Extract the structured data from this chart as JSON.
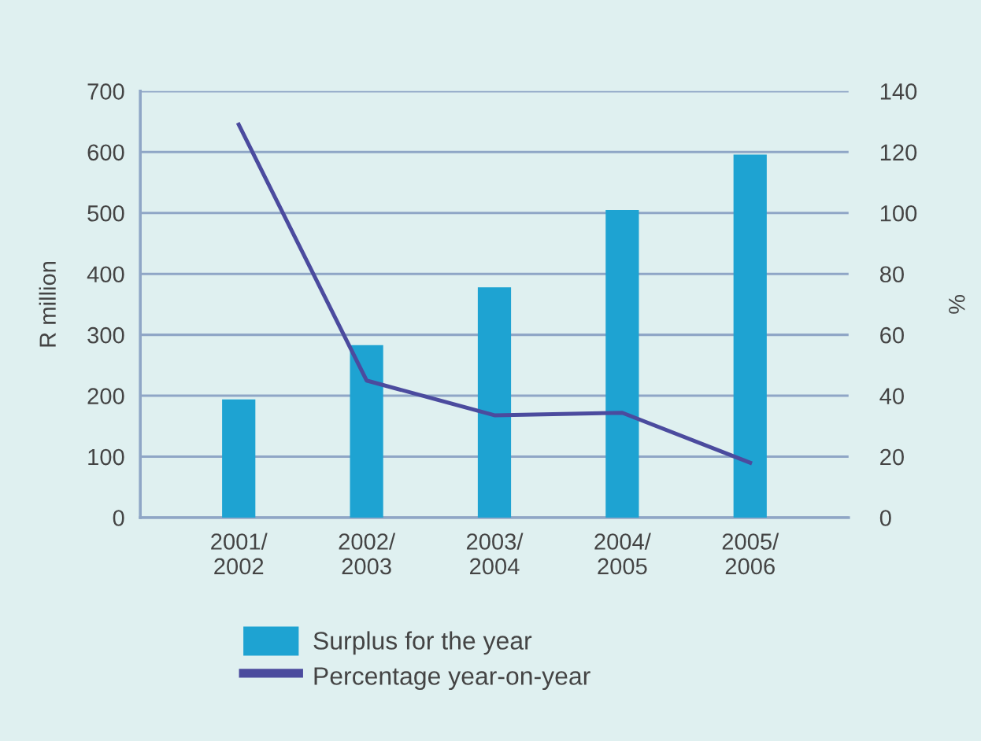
{
  "chart_data": {
    "type": "bar",
    "categories": [
      "2001/\n2002",
      "2002/\n2003",
      "2003/\n2004",
      "2004/\n2005",
      "2005/\n2006"
    ],
    "ylabel": "R million",
    "y2label": "%",
    "series": [
      {
        "name": "Surplus for the year",
        "color": "#1ea3d2",
        "values": [
          194,
          283,
          378,
          505,
          596
        ]
      },
      {
        "name": "Percentage year-on-year",
        "type": "line",
        "axis": "y2",
        "color": "#4b4b9e",
        "values": [
          129,
          45,
          33.6,
          34.4,
          18
        ]
      }
    ],
    "ylim": [
      0,
      700
    ],
    "yticks": [
      0,
      100,
      200,
      300,
      400,
      500,
      600,
      700
    ],
    "y2lim": [
      0,
      140
    ],
    "y2ticks": [
      0,
      20,
      40,
      60,
      80,
      100,
      120,
      140
    ],
    "grid": "y",
    "legend": "bottom",
    "marker": "none",
    "line_style": "solid"
  }
}
